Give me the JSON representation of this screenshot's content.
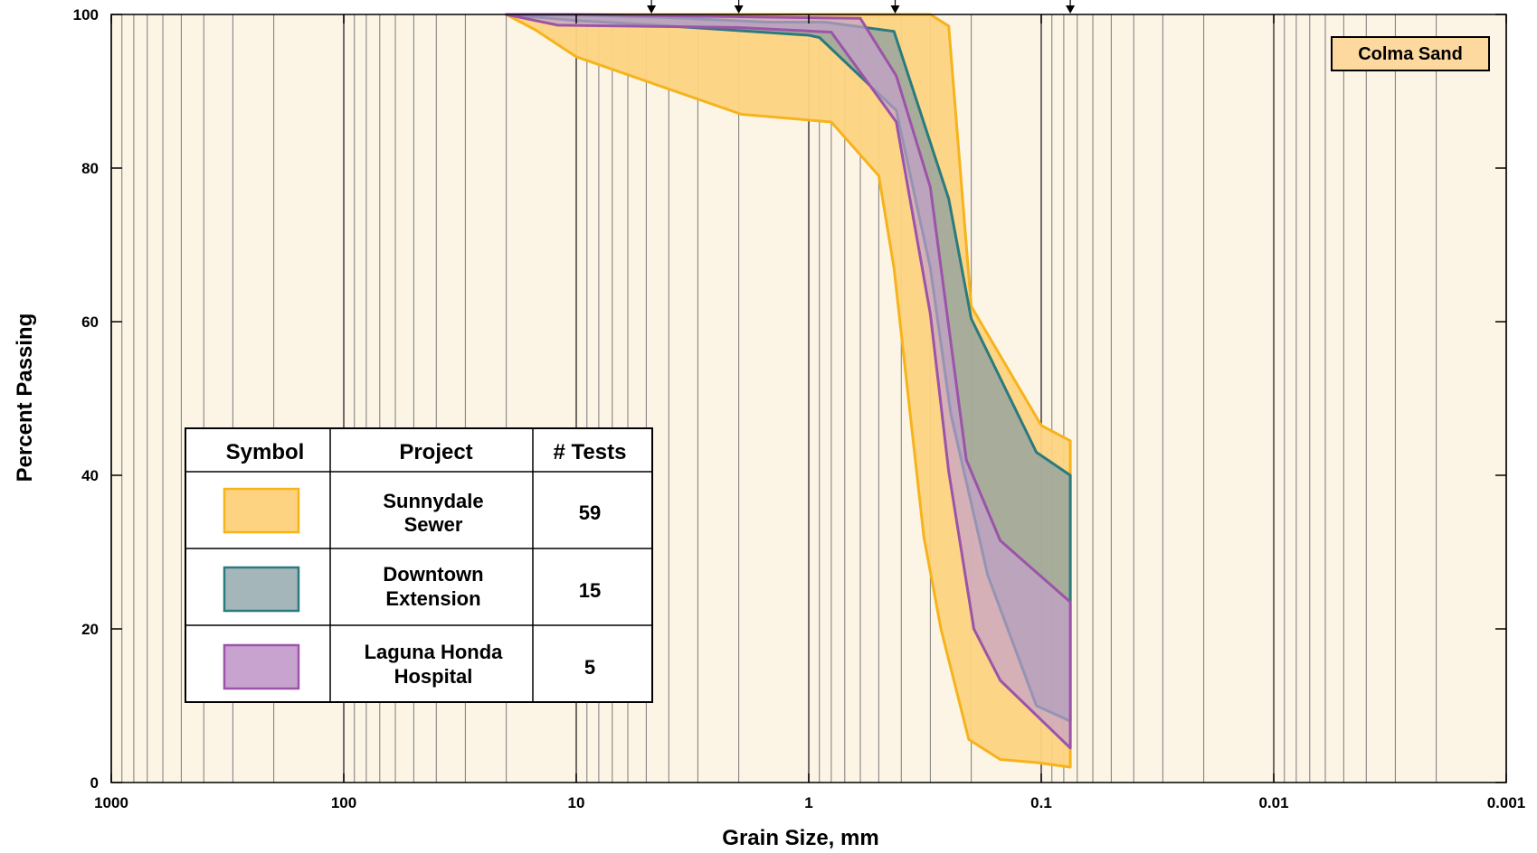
{
  "chart_data": {
    "type": "area",
    "x_scale": "log",
    "x_reversed": true,
    "xlim": [
      1000,
      0.001
    ],
    "ylim": [
      0,
      100
    ],
    "xlabel": "Grain Size, mm",
    "ylabel": "Percent Passing",
    "x_ticks": [
      1000,
      100,
      10,
      1,
      0.1,
      0.01,
      0.001
    ],
    "x_tick_labels": [
      "1000",
      "100",
      "10",
      "1",
      "0.1",
      "0.01",
      "0.001"
    ],
    "y_ticks": [
      0,
      20,
      40,
      60,
      80,
      100
    ],
    "y_tick_labels": [
      "0",
      "20",
      "40",
      "60",
      "80",
      "100"
    ],
    "grid": true,
    "background_color": "#fcf5e6",
    "sieve_markers_x": [
      4.75,
      2.0,
      0.425,
      0.075
    ],
    "label_box": "Colma Sand",
    "series": [
      {
        "name": "Sunnydale Sewer",
        "tests": "59",
        "fill": "#fdd381",
        "stroke": "#f6b31b",
        "fill_opacity": 0.95,
        "upper": [
          [
            5.0,
            100
          ],
          [
            0.3,
            100
          ],
          [
            0.25,
            98.5
          ],
          [
            0.2,
            62
          ],
          [
            0.1,
            46.5
          ],
          [
            0.075,
            44.5
          ]
        ],
        "lower": [
          [
            0.075,
            2
          ],
          [
            0.105,
            2.6
          ],
          [
            0.15,
            3
          ],
          [
            0.205,
            5.6
          ],
          [
            0.27,
            20
          ],
          [
            0.32,
            32
          ],
          [
            0.43,
            67
          ],
          [
            0.5,
            79
          ],
          [
            0.8,
            86
          ],
          [
            1.95,
            87
          ],
          [
            10,
            94.5
          ],
          [
            15,
            98
          ],
          [
            20,
            100
          ]
        ]
      },
      {
        "name": "Downtown Extension",
        "tests": "15",
        "fill": "#8a9fa0",
        "stroke": "#2b7a7e",
        "fill_opacity": 0.75,
        "upper": [
          [
            10,
            99.9
          ],
          [
            4,
            99.6
          ],
          [
            1.5,
            99
          ],
          [
            0.85,
            99
          ],
          [
            0.43,
            97.8
          ],
          [
            0.25,
            76
          ],
          [
            0.2,
            60.4
          ],
          [
            0.105,
            43
          ],
          [
            0.075,
            40
          ]
        ],
        "lower": [
          [
            0.075,
            8
          ],
          [
            0.105,
            10
          ],
          [
            0.17,
            27
          ],
          [
            0.245,
            48
          ],
          [
            0.3,
            67
          ],
          [
            0.42,
            87.5
          ],
          [
            0.9,
            97
          ],
          [
            1.0,
            97.3
          ],
          [
            4,
            98.5
          ],
          [
            10,
            99.2
          ],
          [
            20,
            100
          ]
        ]
      },
      {
        "name": "Laguna Honda Hospital",
        "tests": "5",
        "fill": "#c39fca",
        "stroke": "#9b54a8",
        "fill_opacity": 0.7,
        "upper": [
          [
            10,
            100
          ],
          [
            0.6,
            99.5
          ],
          [
            0.42,
            92
          ],
          [
            0.3,
            77.5
          ],
          [
            0.21,
            42
          ],
          [
            0.15,
            31.5
          ],
          [
            0.075,
            23.5
          ]
        ],
        "lower": [
          [
            0.075,
            4.5
          ],
          [
            0.15,
            13.3
          ],
          [
            0.195,
            20
          ],
          [
            0.25,
            40.5
          ],
          [
            0.3,
            61
          ],
          [
            0.42,
            86
          ],
          [
            0.8,
            97.7
          ],
          [
            2,
            98.3
          ],
          [
            12,
            98.6
          ],
          [
            20,
            100
          ]
        ]
      }
    ]
  },
  "legend": {
    "headers": [
      "Symbol",
      "Project",
      "# Tests"
    ],
    "rows": [
      {
        "project_line1": "Sunnydale",
        "project_line2": "Sewer",
        "tests": "59"
      },
      {
        "project_line1": "Downtown",
        "project_line2": "Extension",
        "tests": "15"
      },
      {
        "project_line1": "Laguna Honda",
        "project_line2": "Hospital",
        "tests": "5"
      }
    ]
  }
}
